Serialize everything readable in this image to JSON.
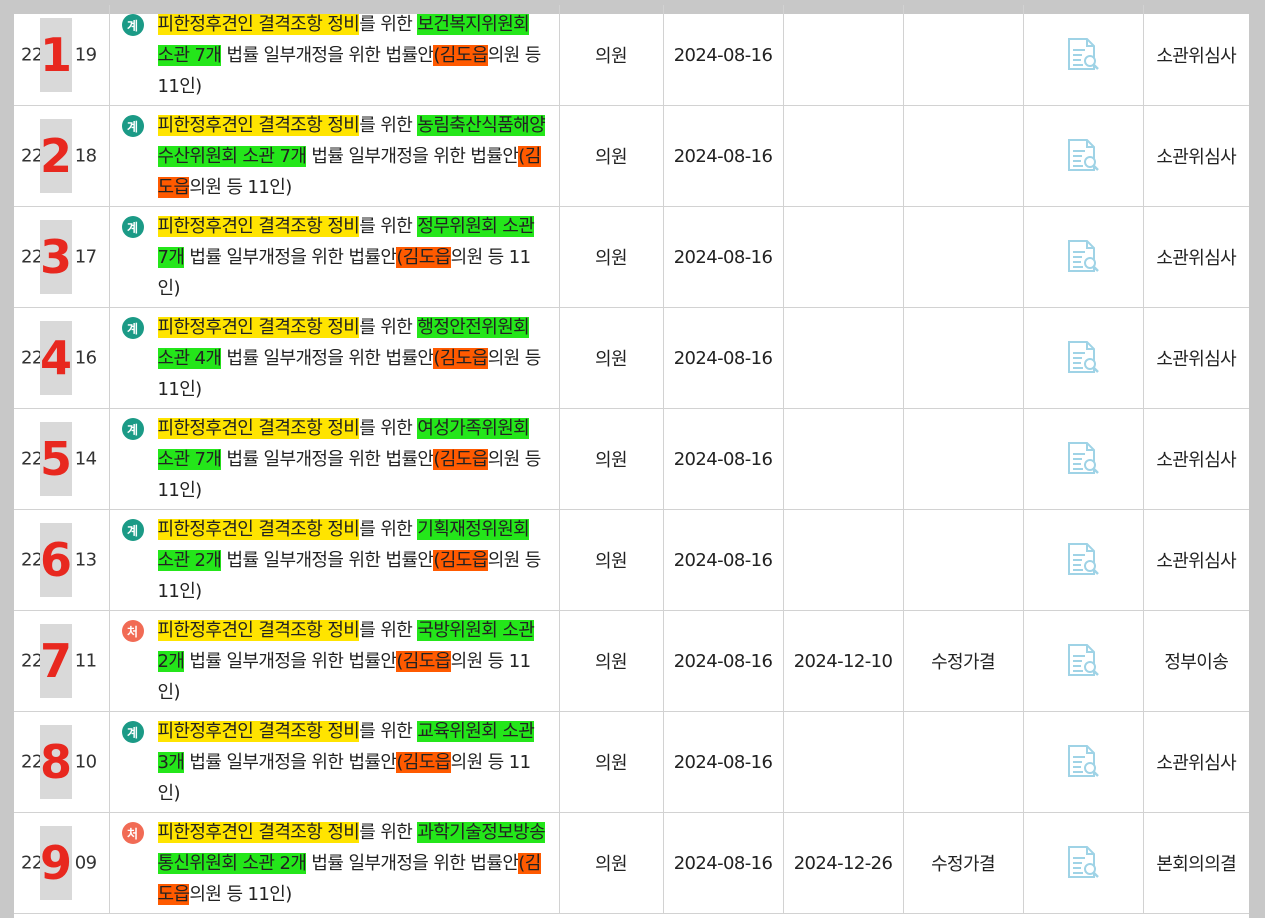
{
  "rows": [
    {
      "bill_no_prefix": "22",
      "bill_no_suffix": "19",
      "overlay": "1",
      "badge": "계",
      "badge_type": "gye",
      "title": {
        "a": "피한정후견인 결격조항 정비",
        "b": "를 위한 ",
        "c": "보건복지위원회 소관 7개",
        "d": " 법률 일부개정을 위한 법률안",
        "e": "(김도읍",
        "f": "의원 등 11인)"
      },
      "proposer": "의원",
      "proposed_date": "2024-08-16",
      "decided_date": "",
      "result": "",
      "status": "소관위심사"
    },
    {
      "bill_no_prefix": "22",
      "bill_no_suffix": "18",
      "overlay": "2",
      "badge": "계",
      "badge_type": "gye",
      "title": {
        "a": "피한정후견인 결격조항 정비",
        "b": "를 위한 ",
        "c": "농림축산식품해양수산위원회 소관 7개",
        "d": " 법률 일부개정을 위한 법률안",
        "e": "(김도읍",
        "f": "의원 등 11인)"
      },
      "proposer": "의원",
      "proposed_date": "2024-08-16",
      "decided_date": "",
      "result": "",
      "status": "소관위심사"
    },
    {
      "bill_no_prefix": "22",
      "bill_no_suffix": "17",
      "overlay": "3",
      "badge": "계",
      "badge_type": "gye",
      "title": {
        "a": "피한정후견인 결격조항 정비",
        "b": "를 위한 ",
        "c": "정무위원회 소관 7개",
        "d": " 법률 일부개정을 위한 법률안",
        "e": "(김도읍",
        "f": "의원 등 11인)"
      },
      "proposer": "의원",
      "proposed_date": "2024-08-16",
      "decided_date": "",
      "result": "",
      "status": "소관위심사"
    },
    {
      "bill_no_prefix": "22",
      "bill_no_suffix": "16",
      "overlay": "4",
      "badge": "계",
      "badge_type": "gye",
      "title": {
        "a": "피한정후견인 결격조항 정비",
        "b": "를 위한 ",
        "c": "행정안전위원회 소관 4개",
        "d": " 법률 일부개정을 위한 법률안",
        "e": "(김도읍",
        "f": "의원 등 11인)"
      },
      "proposer": "의원",
      "proposed_date": "2024-08-16",
      "decided_date": "",
      "result": "",
      "status": "소관위심사"
    },
    {
      "bill_no_prefix": "22",
      "bill_no_suffix": "14",
      "overlay": "5",
      "badge": "계",
      "badge_type": "gye",
      "title": {
        "a": "피한정후견인 결격조항 정비",
        "b": "를 위한 ",
        "c": "여성가족위원회 소관 7개",
        "d": " 법률 일부개정을 위한 법률안",
        "e": "(김도읍",
        "f": "의원 등 11인)"
      },
      "proposer": "의원",
      "proposed_date": "2024-08-16",
      "decided_date": "",
      "result": "",
      "status": "소관위심사"
    },
    {
      "bill_no_prefix": "22",
      "bill_no_suffix": "13",
      "overlay": "6",
      "badge": "계",
      "badge_type": "gye",
      "title": {
        "a": "피한정후견인 결격조항 정비",
        "b": "를 위한 ",
        "c": "기획재정위원회 소관 2개",
        "d": " 법률 일부개정을 위한 법률안",
        "e": "(김도읍",
        "f": "의원 등 11인)"
      },
      "proposer": "의원",
      "proposed_date": "2024-08-16",
      "decided_date": "",
      "result": "",
      "status": "소관위심사"
    },
    {
      "bill_no_prefix": "22",
      "bill_no_suffix": "11",
      "overlay": "7",
      "badge": "처",
      "badge_type": "cheo",
      "title": {
        "a": "피한정후견인 결격조항 정비",
        "b": "를 위한 ",
        "c": "국방위원회 소관 2개",
        "d": " 법률 일부개정을 위한 법률안",
        "e": "(김도읍",
        "f": "의원 등 11인)"
      },
      "proposer": "의원",
      "proposed_date": "2024-08-16",
      "decided_date": "2024-12-10",
      "result": "수정가결",
      "status": "정부이송"
    },
    {
      "bill_no_prefix": "22",
      "bill_no_suffix": "10",
      "overlay": "8",
      "badge": "계",
      "badge_type": "gye",
      "title": {
        "a": "피한정후견인 결격조항 정비",
        "b": "를 위한 ",
        "c": "교육위원회 소관 3개",
        "d": " 법률 일부개정을 위한 법률안",
        "e": "(김도읍",
        "f": "의원 등 11인)"
      },
      "proposer": "의원",
      "proposed_date": "2024-08-16",
      "decided_date": "",
      "result": "",
      "status": "소관위심사"
    },
    {
      "bill_no_prefix": "22",
      "bill_no_suffix": "09",
      "overlay": "9",
      "badge": "처",
      "badge_type": "cheo",
      "title": {
        "a": "피한정후견인 결격조항 정비",
        "b": "를 위한 ",
        "c": "과학기술정보방송통신위원회 소관 2개",
        "d": " 법률 일부개정을 위한 법률안",
        "e": "(김도읍",
        "f": "의원 등 11인)"
      },
      "proposer": "의원",
      "proposed_date": "2024-08-16",
      "decided_date": "2024-12-26",
      "result": "수정가결",
      "status": "본회의의결"
    }
  ],
  "colors": {
    "highlight_yellow": "#ffe400",
    "highlight_green": "#24e61a",
    "highlight_orange": "#ff5a00",
    "overlay_number": "#e8281f",
    "badge_pending": "#1b9a86",
    "badge_processed": "#f16b55"
  },
  "icons": {
    "document_view": "document-search-icon"
  }
}
